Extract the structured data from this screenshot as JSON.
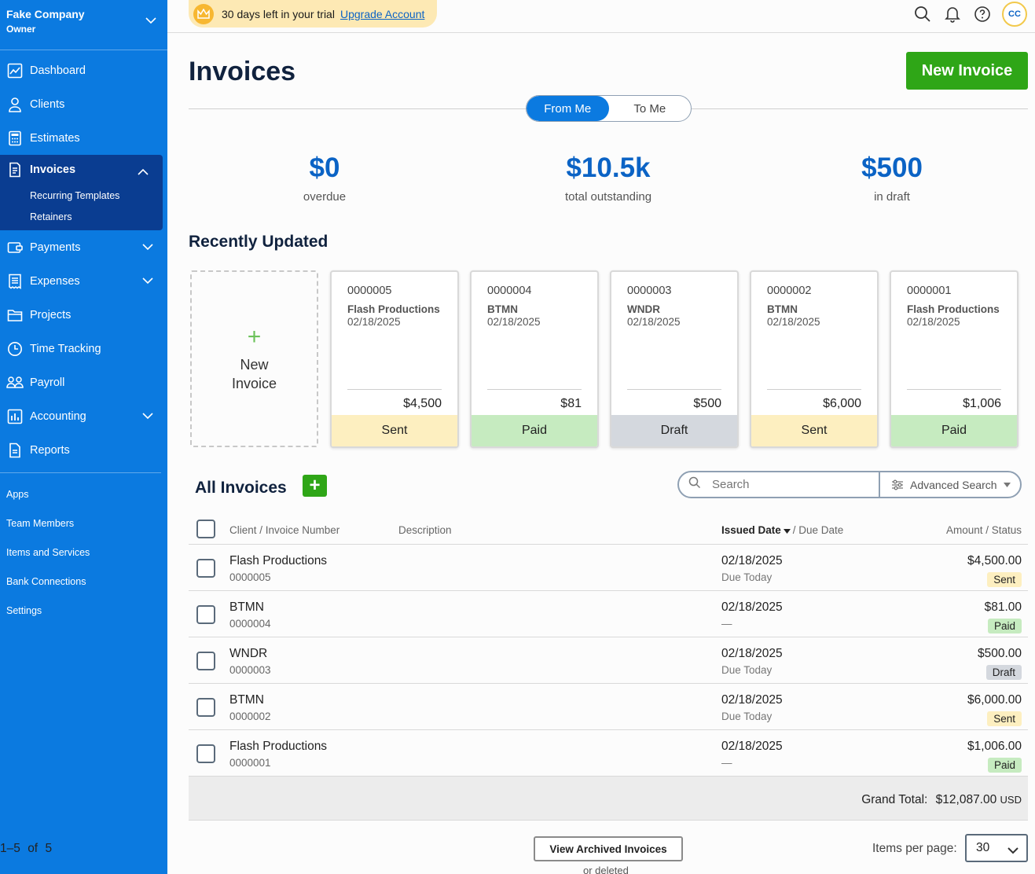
{
  "sidebar": {
    "company": "Fake Company",
    "role": "Owner",
    "nav": [
      {
        "label": "Dashboard",
        "icon": "chart-icon"
      },
      {
        "label": "Clients",
        "icon": "person-icon"
      },
      {
        "label": "Estimates",
        "icon": "calculator-icon"
      },
      {
        "label": "Invoices",
        "icon": "invoice-icon",
        "active": true
      },
      {
        "label": "Payments",
        "icon": "payments-icon"
      },
      {
        "label": "Expenses",
        "icon": "receipt-icon"
      },
      {
        "label": "Projects",
        "icon": "folder-icon"
      },
      {
        "label": "Time Tracking",
        "icon": "clock-icon"
      },
      {
        "label": "Payroll",
        "icon": "team-icon"
      },
      {
        "label": "Accounting",
        "icon": "bar-chart-icon"
      },
      {
        "label": "Reports",
        "icon": "report-icon"
      }
    ],
    "invoice_sub": [
      "Recurring Templates",
      "Retainers"
    ],
    "utility": [
      "Apps",
      "Team Members",
      "Items and Services",
      "Bank Connections",
      "Settings"
    ]
  },
  "topbar": {
    "trial_text": "30 days left in your trial",
    "upgrade_link": "Upgrade Account",
    "avatar_initials": "CC"
  },
  "page": {
    "title": "Invoices",
    "new_invoice_button": "New Invoice",
    "toggle": {
      "from_me": "From Me",
      "to_me": "To Me"
    }
  },
  "stats": {
    "overdue": {
      "value": "$0",
      "label": "overdue"
    },
    "outstanding": {
      "value": "$10.5k",
      "label": "total outstanding"
    },
    "draft": {
      "value": "$500",
      "label": "in draft"
    }
  },
  "recent": {
    "title": "Recently Updated",
    "new_card_plus": "+",
    "new_card_label": "New Invoice",
    "cards": [
      {
        "number": "0000005",
        "client": "Flash Productions",
        "date": "02/18/2025",
        "amount": "$4,500",
        "status": "Sent"
      },
      {
        "number": "0000004",
        "client": "BTMN",
        "date": "02/18/2025",
        "amount": "$81",
        "status": "Paid"
      },
      {
        "number": "0000003",
        "client": "WNDR",
        "date": "02/18/2025",
        "amount": "$500",
        "status": "Draft"
      },
      {
        "number": "0000002",
        "client": "BTMN",
        "date": "02/18/2025",
        "amount": "$6,000",
        "status": "Sent"
      },
      {
        "number": "0000001",
        "client": "Flash Productions",
        "date": "02/18/2025",
        "amount": "$1,006",
        "status": "Paid"
      }
    ]
  },
  "all": {
    "title": "All Invoices",
    "add_button": "+",
    "search_placeholder": "Search",
    "advanced_search": "Advanced Search",
    "headers": {
      "client_invoice": "Client / Invoice Number",
      "description": "Description",
      "issued": "Issued Date",
      "due": "/ Due Date",
      "amount_status": "Amount / Status"
    },
    "rows": [
      {
        "client": "Flash Productions",
        "number": "0000005",
        "issued": "02/18/2025",
        "due": "Due Today",
        "amount": "$4,500.00",
        "status": "Sent"
      },
      {
        "client": "BTMN",
        "number": "0000004",
        "issued": "02/18/2025",
        "due": "—",
        "amount": "$81.00",
        "status": "Paid"
      },
      {
        "client": "WNDR",
        "number": "0000003",
        "issued": "02/18/2025",
        "due": "Due Today",
        "amount": "$500.00",
        "status": "Draft"
      },
      {
        "client": "BTMN",
        "number": "0000002",
        "issued": "02/18/2025",
        "due": "Due Today",
        "amount": "$6,000.00",
        "status": "Sent"
      },
      {
        "client": "Flash Productions",
        "number": "0000001",
        "issued": "02/18/2025",
        "due": "—",
        "amount": "$1,006.00",
        "status": "Paid"
      }
    ],
    "grand_total_label": "Grand Total:",
    "grand_total_value": "$12,087.00",
    "grand_total_currency": "USD"
  },
  "footer": {
    "range": "1–5",
    "of": "of",
    "total": "5",
    "archived_button": "View Archived Invoices",
    "deleted_text": "or deleted",
    "items_per_page_label": "Items per page:",
    "items_per_page_value": "30"
  },
  "status_colors": {
    "Sent": "#fdefc0",
    "Paid": "#c6ebc0",
    "Draft": "#d4d8de"
  },
  "colors": {
    "sidebar": "#0b7ae0",
    "accent_green": "#2fa617",
    "link": "#0b63c5"
  }
}
